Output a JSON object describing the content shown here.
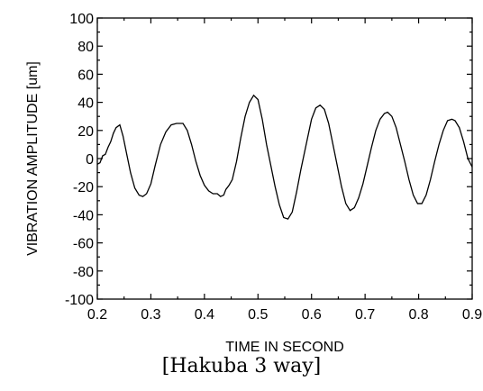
{
  "chart_data": {
    "type": "line",
    "title": "",
    "xlabel": "TIME IN SECOND",
    "ylabel": "VIBRATION AMPLITUDE [um]",
    "xlim": [
      0.2,
      0.9
    ],
    "ylim": [
      -100,
      100
    ],
    "x_ticks": [
      0.2,
      0.3,
      0.4,
      0.5,
      0.6,
      0.7,
      0.8,
      0.9
    ],
    "x_tick_labels": [
      "0.2",
      "0.3",
      "0.4",
      "0.5",
      "0.6",
      "0.7",
      "0.8",
      "0.9"
    ],
    "y_ticks": [
      -100,
      -80,
      -60,
      -40,
      -20,
      0,
      20,
      40,
      60,
      80,
      100
    ],
    "y_tick_labels": [
      "-100",
      "-80",
      "-60",
      "-40",
      "-20",
      "0",
      "20",
      "40",
      "60",
      "80",
      "100"
    ],
    "grid": false,
    "line_color": "#000000",
    "series": [
      {
        "x": [
          0.2,
          0.205,
          0.21,
          0.215,
          0.22,
          0.225,
          0.23,
          0.235,
          0.242,
          0.248,
          0.255,
          0.262,
          0.27,
          0.278,
          0.285,
          0.292,
          0.3,
          0.308,
          0.318,
          0.328,
          0.338,
          0.348,
          0.36,
          0.368,
          0.376,
          0.384,
          0.392,
          0.4,
          0.408,
          0.416,
          0.424,
          0.43,
          0.436,
          0.44,
          0.446,
          0.452,
          0.46,
          0.468,
          0.476,
          0.484,
          0.492,
          0.5,
          0.508,
          0.516,
          0.524,
          0.532,
          0.54,
          0.548,
          0.556,
          0.564,
          0.572,
          0.58,
          0.59,
          0.6,
          0.608,
          0.616,
          0.624,
          0.632,
          0.64,
          0.648,
          0.656,
          0.664,
          0.672,
          0.68,
          0.688,
          0.696,
          0.704,
          0.712,
          0.72,
          0.728,
          0.736,
          0.742,
          0.75,
          0.758,
          0.766,
          0.774,
          0.782,
          0.79,
          0.798,
          0.806,
          0.814,
          0.822,
          0.83,
          0.838,
          0.846,
          0.854,
          0.862,
          0.868,
          0.876,
          0.884,
          0.892,
          0.9
        ],
        "y": [
          -4,
          -3,
          2,
          3,
          8,
          12,
          18,
          22,
          24,
          16,
          3,
          -10,
          -21,
          -26,
          -27,
          -25,
          -18,
          -5,
          10,
          19,
          24,
          25,
          25,
          20,
          10,
          -2,
          -12,
          -19,
          -23,
          -25,
          -25,
          -27,
          -26,
          -22,
          -19,
          -15,
          -2,
          15,
          30,
          40,
          45,
          42,
          28,
          10,
          -5,
          -20,
          -33,
          -42,
          -43,
          -38,
          -24,
          -8,
          10,
          28,
          36,
          38,
          35,
          25,
          10,
          -5,
          -20,
          -32,
          -37,
          -35,
          -28,
          -18,
          -5,
          8,
          20,
          28,
          32,
          33,
          30,
          22,
          10,
          -2,
          -15,
          -26,
          -32,
          -32,
          -26,
          -15,
          -2,
          10,
          20,
          27,
          28,
          27,
          22,
          12,
          0,
          -6
        ]
      }
    ]
  },
  "caption": "[Hakuba 3 way]"
}
